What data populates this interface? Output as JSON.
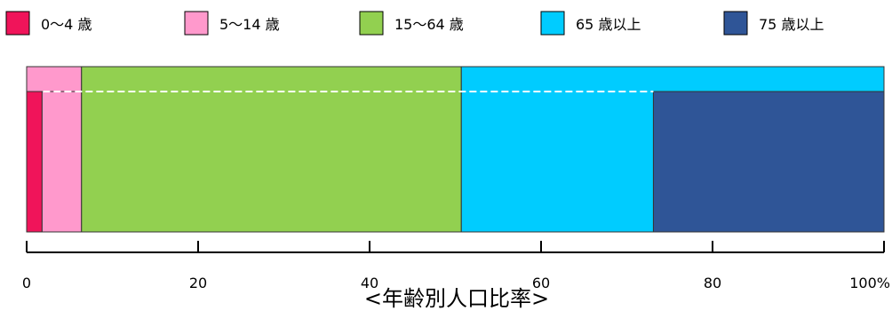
{
  "chart_data": {
    "type": "bar",
    "orientation": "horizontal-stacked",
    "title": "<年齢別人口比率>",
    "xlim": [
      0,
      100
    ],
    "ticks": [
      {
        "value": 0,
        "label": "0"
      },
      {
        "value": 20,
        "label": "20"
      },
      {
        "value": 40,
        "label": "40"
      },
      {
        "value": 60,
        "label": "60"
      },
      {
        "value": 80,
        "label": "80"
      },
      {
        "value": 100,
        "label": "100%"
      }
    ],
    "legend": [
      {
        "label": "0〜4 歳",
        "color": "#f0145a"
      },
      {
        "label": "5〜14 歳",
        "color": "#ff99cc"
      },
      {
        "label": "15〜64 歳",
        "color": "#92d050"
      },
      {
        "label": "65 歳以上",
        "color": "#00ccff"
      },
      {
        "label": "75 歳以上",
        "color": "#2f5597"
      }
    ],
    "series": [
      {
        "name": "0〜4 歳",
        "start": 0,
        "end": 1.8
      },
      {
        "name": "5〜14 歳",
        "start": 1.8,
        "end": 6.4
      },
      {
        "name": "15〜64 歳",
        "start": 6.4,
        "end": 50.7
      },
      {
        "name": "65 歳以上",
        "start": 50.7,
        "end": 100
      },
      {
        "name": "75 歳以上",
        "start": 73.1,
        "end": 100
      }
    ],
    "legend_position": "top",
    "grid": false
  }
}
